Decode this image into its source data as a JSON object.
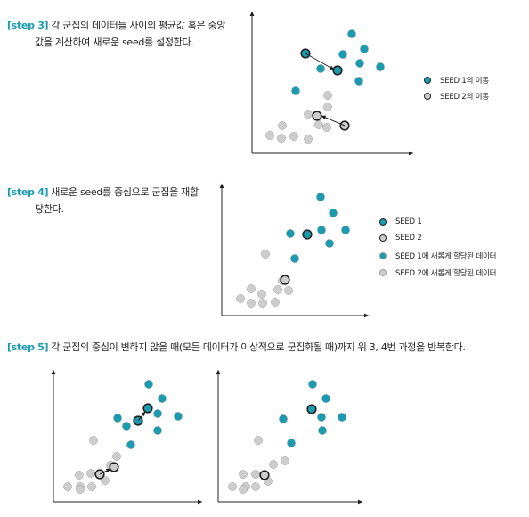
{
  "colors": {
    "cluster1": "#1a9bb0",
    "cluster2": "#cdcdcd",
    "seed_stroke": "#222222",
    "step_tag": "#1a9bb0",
    "axis": "#222222"
  },
  "step3": {
    "tag": "[step 3]",
    "line1": "각 군집의 데이터들 사이의 평균값 혹은 중앙",
    "line2": "값을 계산하여 새로운 seed를 설정한다.",
    "legend": [
      {
        "label": "SEED 1의 이동",
        "style": "cluster1"
      },
      {
        "label": "SEED 2의 이동",
        "style": "cluster2"
      }
    ]
  },
  "step4": {
    "tag": "[step 4]",
    "line1": "새로운 seed를 중심으로 군집을 재할",
    "line2": "당한다.",
    "legend": [
      {
        "label": "SEED 1",
        "style": "seed1"
      },
      {
        "label": "SEED 2",
        "style": "seed2"
      },
      {
        "label": "SEED 1에 새롭게 할당된 데이터",
        "style": "cluster1"
      },
      {
        "label": "SEED 2에 새롭게 할당된 데이터",
        "style": "cluster2"
      }
    ]
  },
  "step5": {
    "tag": "[step 5]",
    "line1": "각 군집의 중심이 변하지 않을 때(모든 데이터가 이상적으로 군집화될 때)까지 위 3, 4번 과정을 반복한다."
  }
}
